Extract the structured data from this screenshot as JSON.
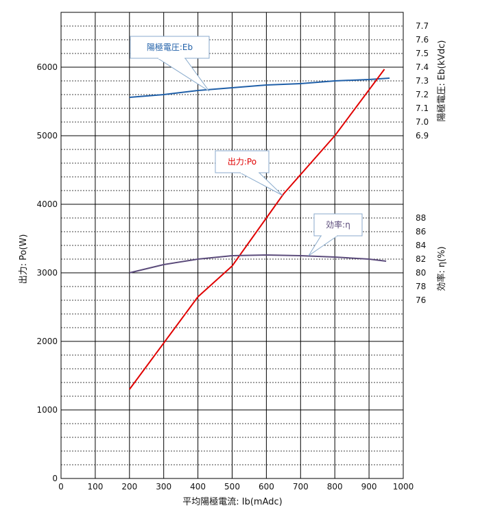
{
  "chart_data": {
    "type": "line",
    "xlabel": "平均陽極電流:  Ib(mAdc)",
    "y_left_label": "出力:  Po(W)",
    "y_right_top_label": "陽極電圧:  Eb(kVdc)",
    "y_right_bottom_label": "効率:  η(%)",
    "x_ticks": [
      "0",
      "100",
      "200",
      "300",
      "400",
      "500",
      "600",
      "700",
      "800",
      "900",
      "1000"
    ],
    "y_left_ticks": [
      "0",
      "1000",
      "2000",
      "3000",
      "4000",
      "5000",
      "6000"
    ],
    "y_right_top_ticks": [
      "6.9",
      "7.0",
      "7.1",
      "7.2",
      "7.3",
      "7.4",
      "7.5",
      "7.6",
      "7.7"
    ],
    "y_right_bottom_ticks": [
      "76",
      "78",
      "80",
      "82",
      "84",
      "86",
      "88"
    ],
    "grid": true,
    "series": [
      {
        "name": "陽極電圧:Eb",
        "axis": "right-top",
        "color": "#1f5fa8",
        "x": [
          200,
          300,
          400,
          500,
          600,
          700,
          800,
          900,
          960
        ],
        "y": [
          7.18,
          7.2,
          7.23,
          7.25,
          7.27,
          7.28,
          7.3,
          7.31,
          7.32
        ]
      },
      {
        "name": "出力:Po",
        "axis": "left",
        "color": "#e00000",
        "x": [
          200,
          400,
          500,
          650,
          800,
          945
        ],
        "y": [
          1300,
          2650,
          3100,
          4150,
          5000,
          5970
        ]
      },
      {
        "name": "効率:η",
        "axis": "right-bottom",
        "color": "#5a4a7a",
        "x": [
          200,
          300,
          400,
          500,
          600,
          700,
          800,
          900,
          950
        ],
        "y": [
          80.0,
          81.2,
          82.0,
          82.5,
          82.6,
          82.5,
          82.3,
          82.0,
          81.7
        ]
      }
    ],
    "callouts": [
      {
        "text": "陽極電圧:Eb",
        "color": "#1f5fa8",
        "target_series": 0
      },
      {
        "text": "出力:Po",
        "color": "#e00000",
        "target_series": 1
      },
      {
        "text": "効率:η",
        "color": "#5a4a7a",
        "target_series": 2
      }
    ]
  }
}
